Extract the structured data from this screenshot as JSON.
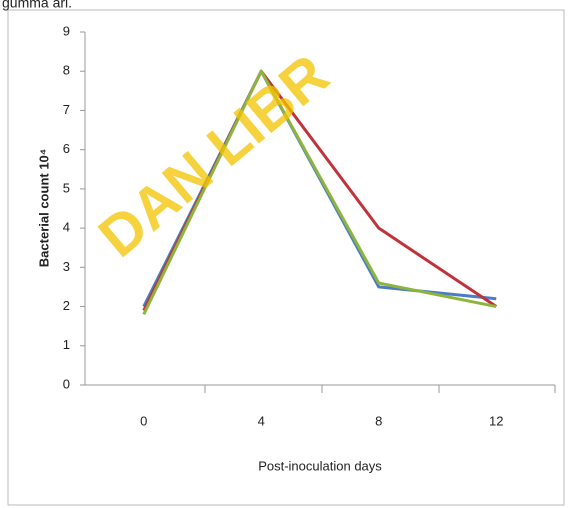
{
  "caption_fragment": "gumma ari.",
  "watermark": "DAN LIBR",
  "chart_data": {
    "type": "line",
    "y_label": "Bacterial count 10⁴",
    "x_label": "Post-inoculation days",
    "categories": [
      "0",
      "4",
      "8",
      "12"
    ],
    "series": [
      {
        "color": "#4a7ec4",
        "values": [
          2,
          8,
          2.5,
          2.2
        ]
      },
      {
        "color": "#c0333a",
        "values": [
          1.9,
          8,
          4,
          2
        ]
      },
      {
        "color": "#8db53c",
        "values": [
          1.8,
          8,
          2.6,
          2
        ]
      }
    ],
    "ylim": [
      0,
      9
    ],
    "yticks": [
      0,
      1,
      2,
      3,
      4,
      5,
      6,
      7,
      8,
      9
    ]
  }
}
